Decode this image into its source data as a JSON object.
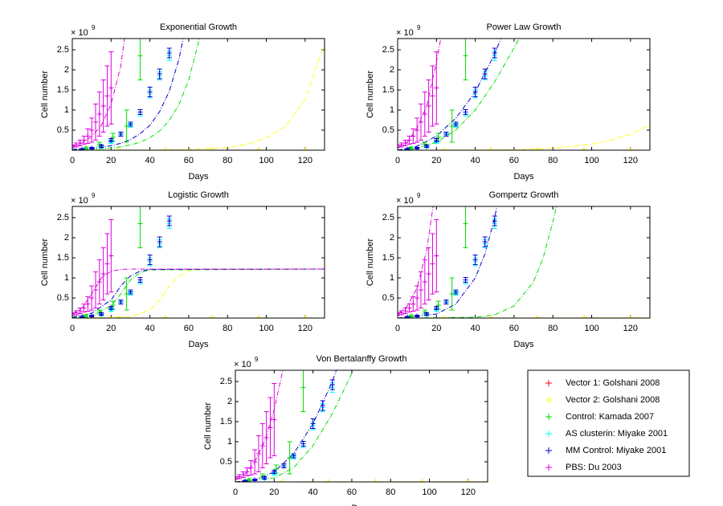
{
  "observations": [
    {
      "name": "Vector 1: Golshani 2008",
      "color": "#ff0000",
      "x": [
        24,
        48,
        72,
        96,
        120
      ],
      "values": [
        0.01,
        0.01,
        0.01,
        0.01,
        0.01
      ],
      "errors": [
        0,
        0,
        0,
        0,
        0
      ]
    },
    {
      "name": "Vector 2: Golshani 2008",
      "color": "#ffff00",
      "x": [
        24,
        48,
        72,
        96,
        120
      ],
      "values": [
        0.01,
        0.01,
        0.01,
        0.01,
        0.01
      ],
      "errors": [
        0,
        0,
        0,
        0,
        0
      ]
    },
    {
      "name": "Control: Kamada 2007",
      "color": "#00dd00",
      "x": [
        7,
        14,
        21,
        28,
        35
      ],
      "values": [
        0.05,
        0.15,
        0.32,
        0.6,
        2.35
      ],
      "errors": [
        0.03,
        0.05,
        0.1,
        0.4,
        0.6
      ]
    },
    {
      "name": "AS clusterin: Miyake 2001",
      "color": "#00ffff",
      "x": [
        15,
        20,
        25,
        30,
        35,
        40,
        45,
        50
      ],
      "values": [
        0.08,
        0.2,
        0.4,
        0.62,
        0.9,
        1.4,
        1.85,
        2.35
      ],
      "errors": [
        0.02,
        0.03,
        0.04,
        0.05,
        0.05,
        0.1,
        0.1,
        0.12
      ]
    },
    {
      "name": "MM Control: Miyake 2001",
      "color": "#0000cc",
      "x": [
        5,
        10,
        15,
        20,
        25,
        30,
        35,
        40,
        45,
        50
      ],
      "values": [
        0.02,
        0.05,
        0.1,
        0.25,
        0.4,
        0.65,
        0.95,
        1.45,
        1.9,
        2.42
      ],
      "errors": [
        0.02,
        0.02,
        0.03,
        0.04,
        0.05,
        0.05,
        0.06,
        0.12,
        0.12,
        0.12
      ]
    },
    {
      "name": "PBS: Du 2003",
      "color": "#dd00dd",
      "x": [
        0,
        2,
        4,
        6,
        8,
        10,
        12,
        14,
        16,
        18,
        20
      ],
      "values": [
        0.1,
        0.13,
        0.18,
        0.25,
        0.35,
        0.5,
        0.7,
        0.9,
        1.1,
        1.35,
        1.55
      ],
      "errors": [
        0.03,
        0.05,
        0.07,
        0.1,
        0.18,
        0.3,
        0.45,
        0.55,
        0.65,
        0.75,
        0.9
      ]
    }
  ],
  "chart_data": [
    {
      "type": "line",
      "title": "Exponential Growth",
      "xlabel": "Days",
      "ylabel": "Cell number",
      "yexponent": {
        "base": "× 10",
        "power": "9"
      },
      "xlim": [
        0,
        130
      ],
      "ylim": [
        0,
        2.78
      ],
      "xticks": [
        0,
        20,
        40,
        60,
        80,
        100,
        120
      ],
      "yticks": [
        0.5,
        1,
        1.5,
        2,
        2.5
      ],
      "models": [
        {
          "color": "#ffff00",
          "x": [
            0,
            40,
            60,
            80,
            90,
            100,
            110,
            120,
            130
          ],
          "values": [
            0.0002,
            0.0037,
            0.016,
            0.069,
            0.144,
            0.3,
            0.6,
            1.28,
            2.64
          ]
        },
        {
          "color": "#00dd00",
          "x": [
            0,
            5,
            10,
            15,
            20,
            25,
            30,
            35,
            40,
            45,
            50,
            55,
            60,
            65,
            70
          ],
          "values": [
            0.01,
            0.015,
            0.024,
            0.036,
            0.056,
            0.086,
            0.13,
            0.2,
            0.31,
            0.48,
            0.74,
            1.14,
            1.75,
            2.68,
            4.1
          ]
        },
        {
          "color": "#0000cc",
          "x": [
            0,
            5,
            10,
            15,
            20,
            25,
            30,
            35,
            40,
            45,
            50,
            55,
            60
          ],
          "values": [
            0.02,
            0.031,
            0.047,
            0.072,
            0.112,
            0.172,
            0.264,
            0.41,
            0.62,
            0.96,
            1.47,
            2.27,
            3.48
          ]
        },
        {
          "color": "#dd00dd",
          "x": [
            0,
            5,
            10,
            15,
            20,
            25,
            30
          ],
          "values": [
            0.1,
            0.18,
            0.34,
            0.62,
            1.15,
            2.1,
            3.9
          ]
        }
      ]
    },
    {
      "type": "line",
      "title": "Power Law Growth",
      "xlabel": "Days",
      "ylabel": "Cell number",
      "yexponent": {
        "base": "× 10",
        "power": "9"
      },
      "xlim": [
        0,
        130
      ],
      "ylim": [
        0,
        2.78
      ],
      "xticks": [
        0,
        20,
        40,
        60,
        80,
        100,
        120
      ],
      "yticks": [
        0.5,
        1,
        1.5,
        2,
        2.5
      ],
      "models": [
        {
          "color": "#ffff00",
          "x": [
            0,
            60,
            80,
            100,
            110,
            120,
            130
          ],
          "values": [
            0,
            0.01,
            0.05,
            0.15,
            0.25,
            0.4,
            0.62
          ]
        },
        {
          "color": "#00dd00",
          "x": [
            0,
            10,
            20,
            30,
            40,
            50,
            60,
            65
          ],
          "values": [
            0,
            0.05,
            0.2,
            0.5,
            1.0,
            1.7,
            2.55,
            3.0
          ]
        },
        {
          "color": "#0000cc",
          "x": [
            0,
            10,
            20,
            30,
            40,
            50,
            55
          ],
          "values": [
            0,
            0.1,
            0.35,
            0.8,
            1.45,
            2.4,
            3.0
          ]
        },
        {
          "color": "#dd00dd",
          "x": [
            0,
            5,
            10,
            15,
            20,
            25
          ],
          "values": [
            0.05,
            0.2,
            0.55,
            1.1,
            2.2,
            3.5
          ]
        }
      ]
    },
    {
      "type": "line",
      "title": "Logistic Growth",
      "xlabel": "Days",
      "ylabel": "Cell number",
      "yexponent": {
        "base": "× 10",
        "power": "9"
      },
      "xlim": [
        0,
        130
      ],
      "ylim": [
        0,
        2.78
      ],
      "xticks": [
        0,
        20,
        40,
        60,
        80,
        100,
        120
      ],
      "yticks": [
        0.5,
        1,
        1.5,
        2,
        2.5
      ],
      "models": [
        {
          "color": "#ffff00",
          "x": [
            0,
            30,
            40,
            45,
            50,
            55,
            60,
            65,
            130
          ],
          "values": [
            0,
            0.03,
            0.2,
            0.45,
            0.8,
            1.05,
            1.18,
            1.21,
            1.22
          ]
        },
        {
          "color": "#00dd00",
          "x": [
            0,
            10,
            20,
            25,
            30,
            35,
            40,
            130
          ],
          "values": [
            0.01,
            0.06,
            0.3,
            0.6,
            0.95,
            1.13,
            1.2,
            1.22
          ]
        },
        {
          "color": "#0000cc",
          "x": [
            0,
            10,
            20,
            25,
            30,
            35,
            40,
            130
          ],
          "values": [
            0.02,
            0.12,
            0.45,
            0.8,
            1.05,
            1.17,
            1.21,
            1.22
          ]
        },
        {
          "color": "#dd00dd",
          "x": [
            0,
            5,
            10,
            15,
            20,
            25,
            30,
            130
          ],
          "values": [
            0.1,
            0.25,
            0.6,
            1.0,
            1.17,
            1.21,
            1.22,
            1.22
          ]
        }
      ]
    },
    {
      "type": "line",
      "title": "Gompertz Growth",
      "xlabel": "Days",
      "ylabel": "Cell number",
      "yexponent": {
        "base": "× 10",
        "power": "9"
      },
      "xlim": [
        0,
        130
      ],
      "ylim": [
        0,
        2.78
      ],
      "xticks": [
        0,
        20,
        40,
        60,
        80,
        100,
        120
      ],
      "yticks": [
        0.5,
        1,
        1.5,
        2,
        2.5
      ],
      "models": [
        {
          "color": "#ffff00",
          "x": [
            0,
            130
          ],
          "values": [
            0,
            0.005
          ]
        },
        {
          "color": "#00dd00",
          "x": [
            0,
            40,
            50,
            60,
            70,
            75,
            80,
            83
          ],
          "values": [
            0,
            0.02,
            0.08,
            0.3,
            0.9,
            1.5,
            2.4,
            3.0
          ]
        },
        {
          "color": "#0000cc",
          "x": [
            0,
            20,
            30,
            40,
            45,
            50,
            52
          ],
          "values": [
            0,
            0.1,
            0.35,
            1.0,
            1.6,
            2.5,
            3.0
          ]
        },
        {
          "color": "#dd00dd",
          "x": [
            0,
            5,
            10,
            15,
            18,
            20
          ],
          "values": [
            0.1,
            0.3,
            0.75,
            1.7,
            2.7,
            3.5
          ]
        }
      ]
    },
    {
      "type": "line",
      "title": "Von Bertalanffy Growth",
      "xlabel": "Days",
      "ylabel": "Cell number",
      "yexponent": {
        "base": "× 10",
        "power": "9"
      },
      "xlim": [
        0,
        130
      ],
      "ylim": [
        0,
        2.78
      ],
      "xticks": [
        0,
        20,
        40,
        60,
        80,
        100,
        120
      ],
      "yticks": [
        0.5,
        1,
        1.5,
        2,
        2.5
      ],
      "models": [
        {
          "color": "#ffff00",
          "x": [
            0,
            130
          ],
          "values": [
            0,
            0.005
          ]
        },
        {
          "color": "#00dd00",
          "x": [
            0,
            20,
            30,
            40,
            50,
            60,
            62
          ],
          "values": [
            0,
            0.1,
            0.35,
            0.9,
            1.7,
            2.7,
            3.0
          ]
        },
        {
          "color": "#0000cc",
          "x": [
            0,
            10,
            20,
            30,
            40,
            50,
            55
          ],
          "values": [
            0,
            0.05,
            0.25,
            0.7,
            1.45,
            2.5,
            3.2
          ]
        },
        {
          "color": "#dd00dd",
          "x": [
            0,
            5,
            10,
            15,
            20,
            25
          ],
          "values": [
            0.05,
            0.2,
            0.5,
            1.0,
            1.8,
            2.9
          ]
        }
      ]
    }
  ]
}
